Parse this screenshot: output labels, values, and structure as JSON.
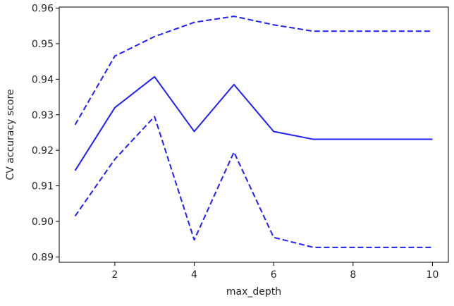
{
  "chart_data": {
    "type": "line",
    "title": "",
    "xlabel": "max_depth",
    "ylabel": "CV accuracy score",
    "xlim": [
      0.6,
      10.4
    ],
    "ylim": [
      0.8885,
      0.9603
    ],
    "xticks": [
      2,
      4,
      6,
      8,
      10
    ],
    "yticks": [
      0.89,
      0.9,
      0.91,
      0.92,
      0.93,
      0.94,
      0.95,
      0.96
    ],
    "ytick_labels": [
      "0.89",
      "0.90",
      "0.91",
      "0.92",
      "0.93",
      "0.94",
      "0.95",
      "0.96"
    ],
    "xtick_labels": [
      "2",
      "4",
      "6",
      "8",
      "10"
    ],
    "grid": false,
    "legend": false,
    "x": [
      1,
      2,
      3,
      4,
      5,
      6,
      7,
      8,
      9,
      10
    ],
    "series": [
      {
        "role": "mean",
        "style": "solid",
        "color": "#1f1fff",
        "values": [
          0.9143,
          0.932,
          0.9407,
          0.9253,
          0.9385,
          0.9253,
          0.9231,
          0.9231,
          0.9231,
          0.9231
        ]
      },
      {
        "role": "upper",
        "style": "dashed",
        "color": "#1f1fff",
        "values": [
          0.9272,
          0.9465,
          0.952,
          0.956,
          0.9577,
          0.9553,
          0.9535,
          0.9535,
          0.9535,
          0.9535
        ]
      },
      {
        "role": "lower",
        "style": "dashed",
        "color": "#1f1fff",
        "values": [
          0.9015,
          0.9175,
          0.9295,
          0.8948,
          0.9195,
          0.8955,
          0.8927,
          0.8927,
          0.8927,
          0.8927
        ]
      }
    ]
  }
}
